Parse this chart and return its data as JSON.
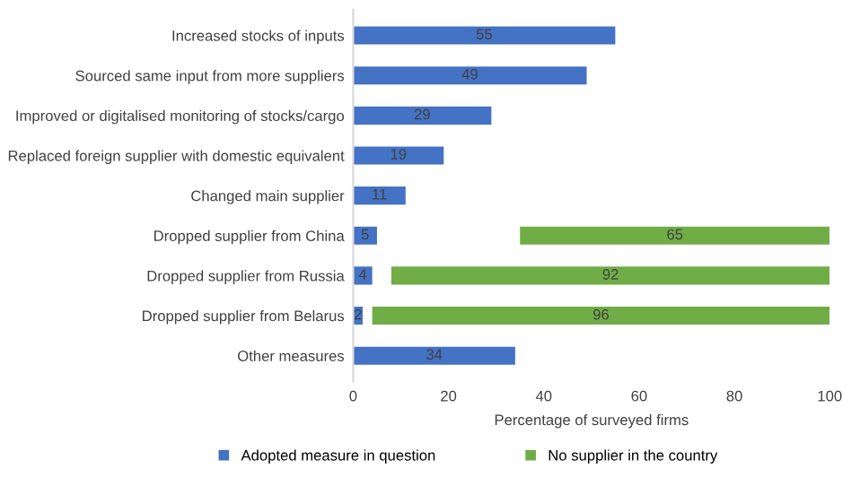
{
  "chart_data": {
    "type": "bar",
    "orientation": "horizontal",
    "xlabel": "Percentage of surveyed firms",
    "categories": [
      "Increased stocks of inputs",
      "Sourced same input from more suppliers",
      "Improved or digitalised monitoring of stocks/cargo",
      "Replaced foreign supplier with domestic equivalent",
      "Changed main supplier",
      "Dropped supplier from China",
      "Dropped supplier from Russia",
      "Dropped supplier from Belarus",
      "Other measures"
    ],
    "series": [
      {
        "name": "Adopted measure in question",
        "color": "#4472c4",
        "values": [
          55,
          49,
          29,
          19,
          11,
          5,
          4,
          2,
          34
        ]
      },
      {
        "name": "No supplier in the country",
        "color": "#70ad47",
        "values": [
          null,
          null,
          null,
          null,
          null,
          65,
          92,
          96,
          null
        ],
        "base": [
          null,
          null,
          null,
          null,
          null,
          35,
          8,
          4,
          null
        ]
      }
    ],
    "xlim": [
      0,
      100
    ],
    "xticks": [
      0,
      20,
      40,
      60,
      80,
      100
    ],
    "data_labels": true,
    "legend": "bottom",
    "grid": false
  }
}
